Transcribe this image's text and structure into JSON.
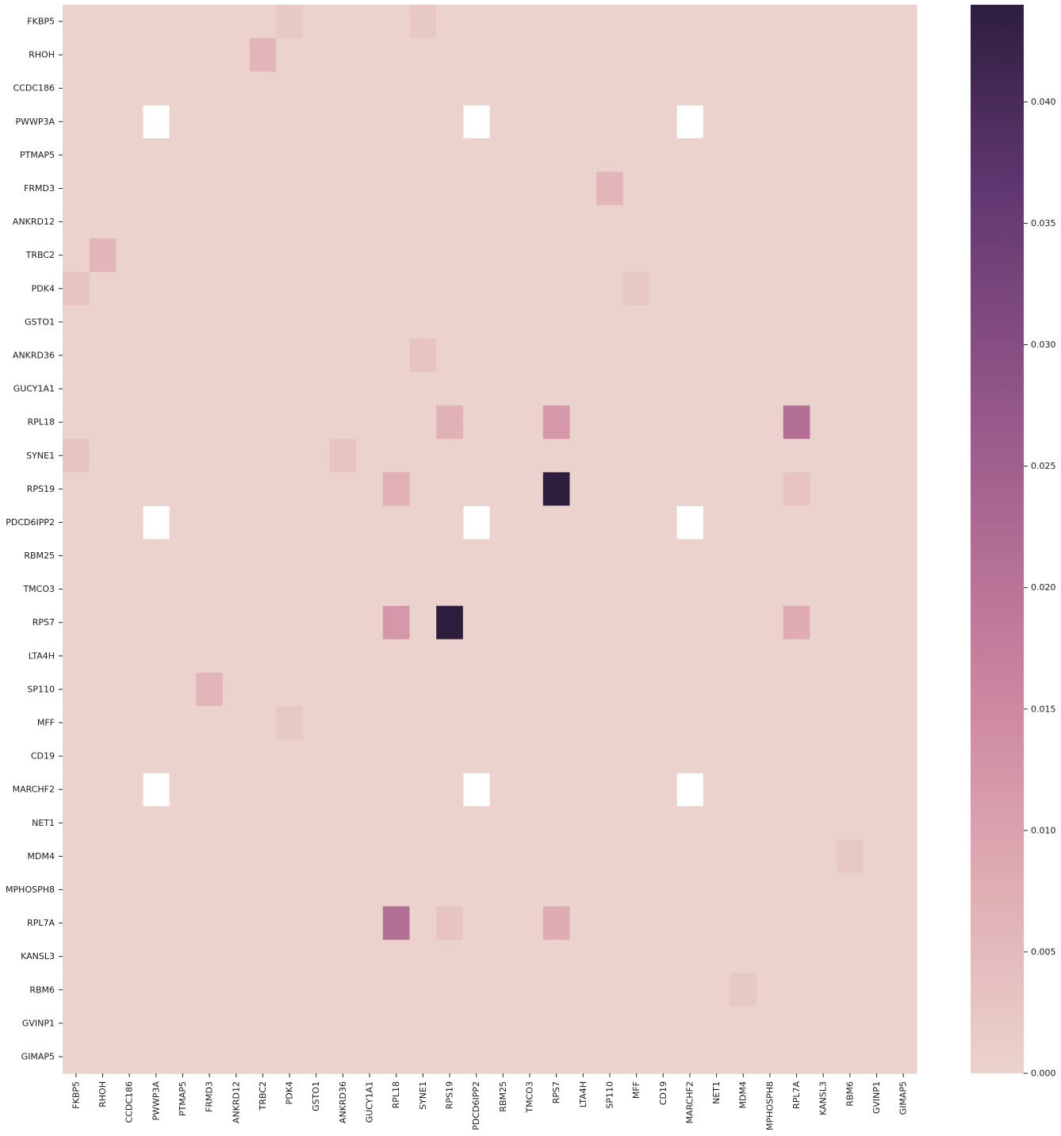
{
  "chart_data": {
    "type": "heatmap",
    "title": "",
    "xlabel": "",
    "ylabel": "",
    "rows": [
      "FKBP5",
      "RHOH",
      "CCDC186",
      "PWWP3A",
      "PTMAP5",
      "FRMD3",
      "ANKRD12",
      "TRBC2",
      "PDK4",
      "GSTO1",
      "ANKRD36",
      "GUCY1A1",
      "RPL18",
      "SYNE1",
      "RPS19",
      "PDCD6IPP2",
      "RBM25",
      "TMCO3",
      "RPS7",
      "LTA4H",
      "SP110",
      "MFF",
      "CD19",
      "MARCHF2",
      "NET1",
      "MDM4",
      "MPHOSPH8",
      "RPL7A",
      "KANSL3",
      "RBM6",
      "GVINP1",
      "GIMAP5"
    ],
    "columns": [
      "FKBP5",
      "RHOH",
      "CCDC186",
      "PWWP3A",
      "PTMAP5",
      "FRMD3",
      "ANKRD12",
      "TRBC2",
      "PDK4",
      "GSTO1",
      "ANKRD36",
      "GUCY1A1",
      "RPL18",
      "SYNE1",
      "RPS19",
      "PDCD6IPP2",
      "RBM25",
      "TMCO3",
      "RPS7",
      "LTA4H",
      "SP110",
      "MFF",
      "CD19",
      "MARCHF2",
      "NET1",
      "MDM4",
      "MPHOSPH8",
      "RPL7A",
      "KANSL3",
      "RBM6",
      "GVINP1",
      "GIMAP5"
    ],
    "default_value": 0,
    "missing_rows": [
      "PWWP3A",
      "PDCD6IPP2",
      "MARCHF2"
    ],
    "missing_columns": [
      "PWWP3A",
      "PDCD6IPP2",
      "MARCHF2"
    ],
    "cells": [
      {
        "row": "FKBP5",
        "col": "PDK4",
        "value": 0.002
      },
      {
        "row": "FKBP5",
        "col": "SYNE1",
        "value": 0.002
      },
      {
        "row": "RHOH",
        "col": "TRBC2",
        "value": 0.006
      },
      {
        "row": "FRMD3",
        "col": "SP110",
        "value": 0.006
      },
      {
        "row": "TRBC2",
        "col": "RHOH",
        "value": 0.006
      },
      {
        "row": "PDK4",
        "col": "FKBP5",
        "value": 0.003
      },
      {
        "row": "PDK4",
        "col": "MFF",
        "value": 0.002
      },
      {
        "row": "ANKRD36",
        "col": "SYNE1",
        "value": 0.003
      },
      {
        "row": "RPL18",
        "col": "RPS19",
        "value": 0.007
      },
      {
        "row": "RPL18",
        "col": "RPS7",
        "value": 0.012
      },
      {
        "row": "RPL18",
        "col": "RPL7A",
        "value": 0.021
      },
      {
        "row": "SYNE1",
        "col": "FKBP5",
        "value": 0.003
      },
      {
        "row": "SYNE1",
        "col": "ANKRD36",
        "value": 0.003
      },
      {
        "row": "RPS19",
        "col": "RPL18",
        "value": 0.007
      },
      {
        "row": "RPS19",
        "col": "RPS7",
        "value": 0.044
      },
      {
        "row": "RPS19",
        "col": "RPL7A",
        "value": 0.003
      },
      {
        "row": "RPS7",
        "col": "RPL18",
        "value": 0.012
      },
      {
        "row": "RPS7",
        "col": "RPS19",
        "value": 0.044
      },
      {
        "row": "RPS7",
        "col": "RPL7A",
        "value": 0.008
      },
      {
        "row": "SP110",
        "col": "FRMD3",
        "value": 0.006
      },
      {
        "row": "MFF",
        "col": "PDK4",
        "value": 0.002
      },
      {
        "row": "MDM4",
        "col": "RBM6",
        "value": 0.002
      },
      {
        "row": "RPL7A",
        "col": "RPL18",
        "value": 0.021
      },
      {
        "row": "RPL7A",
        "col": "RPS19",
        "value": 0.003
      },
      {
        "row": "RPL7A",
        "col": "RPS7",
        "value": 0.008
      },
      {
        "row": "RBM6",
        "col": "MDM4",
        "value": 0.002
      }
    ],
    "colorbar": {
      "min": 0.0,
      "max": 0.044,
      "ticks": [
        0.0,
        0.005,
        0.01,
        0.015,
        0.02,
        0.025,
        0.03,
        0.035,
        0.04
      ],
      "tick_labels": [
        "0.000",
        "0.005",
        "0.010",
        "0.015",
        "0.020",
        "0.025",
        "0.030",
        "0.035",
        "0.040"
      ],
      "colors": [
        "#ebd2cc",
        "#e0afb4",
        "#cf8aa2",
        "#b06b93",
        "#8a5084",
        "#5f3670",
        "#2d1e3e"
      ]
    }
  }
}
